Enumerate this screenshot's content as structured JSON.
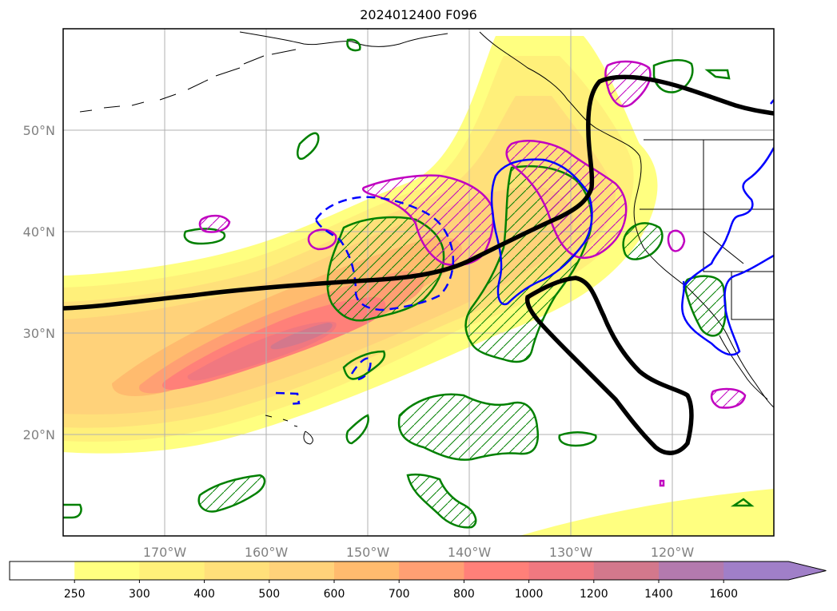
{
  "title": "2024012400 F096",
  "axes": {
    "lat_labels": [
      "50°N",
      "40°N",
      "30°N",
      "20°N"
    ],
    "lon_labels": [
      "170°W",
      "160°W",
      "150°W",
      "140°W",
      "130°W",
      "120°W"
    ]
  },
  "colorbar": {
    "ticks": [
      "250",
      "300",
      "400",
      "500",
      "600",
      "700",
      "800",
      "1000",
      "1200",
      "1400",
      "1600"
    ],
    "colors": [
      "#ffffff",
      "#ffff80",
      "#fff07a",
      "#ffe07a",
      "#ffd27a",
      "#ffbb6e",
      "#ff9f73",
      "#ff8079",
      "#f07880",
      "#d3788c",
      "#b37aae",
      "#a07fc8"
    ],
    "extend": "max"
  },
  "contour_colors": {
    "black_line": "#000000",
    "green": "#008000",
    "magenta": "#c000c0",
    "blue": "#0000ff"
  }
}
